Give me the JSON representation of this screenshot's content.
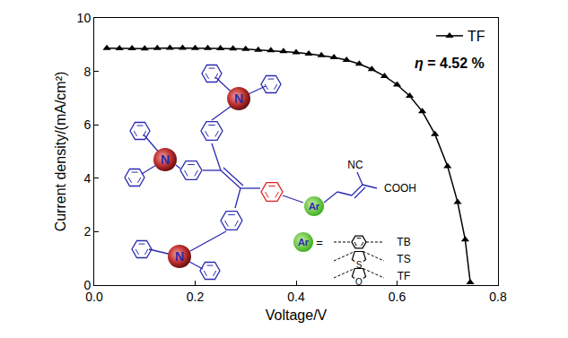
{
  "chart_data": {
    "type": "line",
    "x": [
      0.025,
      0.05,
      0.075,
      0.1,
      0.125,
      0.15,
      0.175,
      0.2,
      0.225,
      0.25,
      0.275,
      0.3,
      0.325,
      0.35,
      0.375,
      0.4,
      0.425,
      0.45,
      0.475,
      0.5,
      0.525,
      0.55,
      0.575,
      0.6,
      0.625,
      0.65,
      0.675,
      0.7,
      0.72,
      0.735,
      0.745
    ],
    "series": [
      {
        "name": "TF",
        "color": "#000000",
        "marker": "triangle-up",
        "line_style": "solid",
        "values": [
          8.87,
          8.86,
          8.86,
          8.85,
          8.87,
          8.88,
          8.88,
          8.87,
          8.87,
          8.86,
          8.85,
          8.83,
          8.8,
          8.78,
          8.75,
          8.71,
          8.66,
          8.6,
          8.52,
          8.42,
          8.28,
          8.08,
          7.82,
          7.5,
          7.08,
          6.5,
          5.65,
          4.45,
          3.1,
          1.7,
          0.1
        ]
      }
    ],
    "xlabel": "Voltage/V",
    "ylabel": "Current density/(mA/cm²)",
    "xlim": [
      0,
      0.8
    ],
    "ylim": [
      0,
      10
    ],
    "xticks": [
      {
        "value": 0,
        "label": "0.0"
      },
      {
        "value": 0.2,
        "label": "0.2"
      },
      {
        "value": 0.4,
        "label": "0.4"
      },
      {
        "value": 0.6,
        "label": "0.6"
      },
      {
        "value": 0.8,
        "label": "0.8"
      }
    ],
    "yticks": [
      0,
      2,
      4,
      6,
      8,
      10
    ],
    "grid": false,
    "legend": "upper right",
    "annotations": [
      {
        "text": "η = 4.52 %"
      }
    ]
  },
  "inset": {
    "amine": "N",
    "cyano": "NC",
    "acid": "COOH",
    "aryl": "Ar",
    "options": [
      {
        "label": "TB"
      },
      {
        "label": "TS",
        "heteroatom": "S"
      },
      {
        "label": "TF",
        "heteroatom": "O"
      }
    ]
  }
}
